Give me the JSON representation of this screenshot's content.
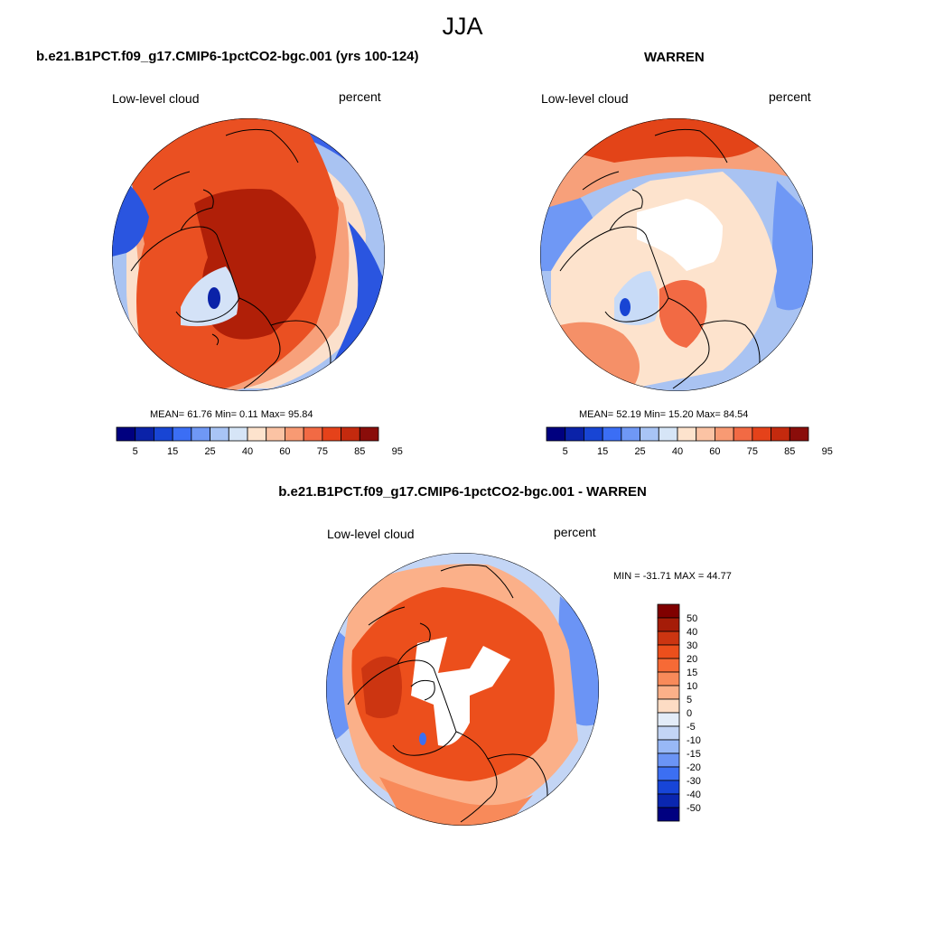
{
  "figure": {
    "title": "JJA",
    "colors": {
      "blue_dark": "#00007f",
      "blue": "#2a5cf5",
      "blue_light": "#c9dcf5",
      "neutral": "#ffffff",
      "red_light": "#f9c0a0",
      "red": "#e34418",
      "red_dark": "#8a0d0a"
    }
  },
  "panels": [
    {
      "title": "b.e21.B1PCT.f09_g17.CMIP6-1pctCO2-bgc.001 (yrs 100-124)",
      "left_label": "Low-level cloud",
      "right_label": "percent",
      "stats": "MEAN=  61.76  Min=   0.11  Max=  95.84",
      "dominant_sign": "positive"
    },
    {
      "title": "WARREN",
      "left_label": "Low-level cloud",
      "right_label": "percent",
      "stats": "MEAN=  52.19  Min=  15.20  Max=  84.54",
      "dominant_sign": "mixed"
    },
    {
      "title": "b.e21.B1PCT.f09_g17.CMIP6-1pctCO2-bgc.001 - WARREN",
      "left_label": "Low-level cloud",
      "right_label": "percent",
      "stats": "MIN = -31.71 MAX =  44.77",
      "dominant_sign": "positive"
    }
  ],
  "colorbar_abs": {
    "colors": [
      "#00007f",
      "#0a22a8",
      "#1845d4",
      "#3b6ef5",
      "#6f98f5",
      "#a8c4f5",
      "#d6e5f7",
      "#fde3cd",
      "#fbc3a4",
      "#f89a73",
      "#f26a44",
      "#e5421a",
      "#c42a0e",
      "#8a0d0a"
    ],
    "tick_labels": [
      "5",
      "15",
      "25",
      "40",
      "60",
      "75",
      "85",
      "95"
    ]
  },
  "colorbar_diff": {
    "colors_top_to_bottom": [
      "#800000",
      "#a51c08",
      "#cc3511",
      "#ec4f1c",
      "#f66a36",
      "#f88a5a",
      "#fbb089",
      "#fddcc4",
      "#e3ecf8",
      "#c3d5f5",
      "#98b8f6",
      "#6b94f5",
      "#3c6ff2",
      "#1745d8",
      "#0a26b0",
      "#000080"
    ],
    "tick_labels": [
      "50",
      "40",
      "30",
      "20",
      "15",
      "10",
      "5",
      "0",
      "-5",
      "-10",
      "-15",
      "-20",
      "-30",
      "-40",
      "-50"
    ]
  }
}
